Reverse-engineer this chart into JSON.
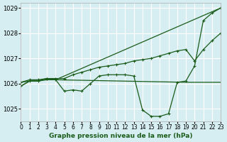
{
  "title": "Graphe pression niveau de la mer (hPa)",
  "background_color": "#d6eef2",
  "grid_color": "#ffffff",
  "line_color": "#1a5c1a",
  "xlim": [
    0,
    23
  ],
  "ylim": [
    1024.5,
    1029.2
  ],
  "yticks": [
    1025,
    1026,
    1027,
    1028,
    1029
  ],
  "xtick_labels": [
    "0",
    "1",
    "2",
    "3",
    "4",
    "5",
    "6",
    "7",
    "8",
    "9",
    "10",
    "11",
    "12",
    "13",
    "14",
    "15",
    "16",
    "17",
    "18",
    "19",
    "20",
    "21",
    "22",
    "23"
  ],
  "series1": {
    "x": [
      0,
      1,
      2,
      3,
      4,
      5,
      6,
      7,
      8,
      9,
      10,
      11,
      12,
      13,
      14,
      15,
      16,
      17,
      18,
      19,
      20,
      21,
      22,
      23
    ],
    "y": [
      1025.9,
      1026.1,
      1026.1,
      1026.2,
      1026.15,
      1025.7,
      1025.75,
      1025.7,
      1026.0,
      1026.3,
      1026.35,
      1026.35,
      1026.35,
      1026.3,
      1024.95,
      1024.7,
      1024.7,
      1024.8,
      1026.05,
      1026.1,
      1026.7,
      1028.5,
      1028.8,
      1029.0
    ]
  },
  "series2": {
    "x": [
      0,
      1,
      2,
      3,
      4,
      5,
      6,
      7,
      8,
      9,
      10,
      11,
      12,
      13,
      14,
      15,
      16,
      17,
      18,
      19,
      20,
      21,
      22,
      23
    ],
    "y": [
      1026.05,
      1026.15,
      1026.15,
      1026.2,
      1026.2,
      1026.2,
      1026.35,
      1026.45,
      1026.55,
      1026.65,
      1026.7,
      1026.75,
      1026.8,
      1026.9,
      1026.95,
      1027.0,
      1027.1,
      1027.2,
      1027.3,
      1027.35,
      1026.9,
      1027.35,
      1027.7,
      1028.0
    ]
  },
  "series3": {
    "x": [
      0,
      1,
      2,
      3,
      4,
      23
    ],
    "y": [
      1025.9,
      1026.1,
      1026.1,
      1026.2,
      1026.15,
      1029.0
    ]
  },
  "series4": {
    "x": [
      0,
      1,
      2,
      3,
      4,
      19,
      20,
      21,
      22,
      23
    ],
    "y": [
      1026.05,
      1026.1,
      1026.1,
      1026.15,
      1026.15,
      1026.05,
      1026.05,
      1026.05,
      1026.05,
      1026.05
    ]
  }
}
